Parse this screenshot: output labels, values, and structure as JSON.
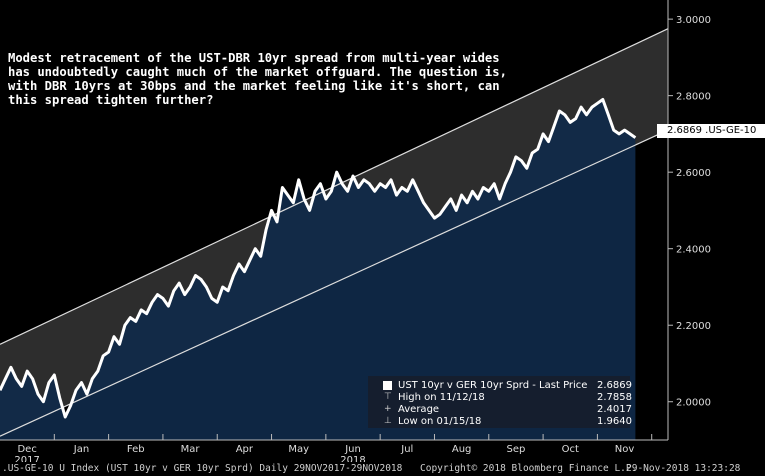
{
  "annotation": "Modest retracement of the UST-DBR 10yr spread from multi-year wides has undoubtedly caught much of the market offguard. The question is, with DBR 10yrs at 30bps and the market feeling like it's short, can this spread tighten further?",
  "last_price_label": "2.6869 .US-GE-10",
  "legend": {
    "title": "UST 10yr v GER 10yr Sprd - Last Price",
    "title_value": "2.6869",
    "rows": [
      {
        "label": "High on 11/12/18",
        "value": "2.7858"
      },
      {
        "label": "Average",
        "value": "2.4017"
      },
      {
        "label": "Low on 01/15/18",
        "value": "1.9640"
      }
    ]
  },
  "footer": {
    "left": ".US-GE-10 U Index (UST 10yr v GER 10yr Sprd)  Daily 29NOV2017-29NOV2018",
    "center": "Copyright© 2018 Bloomberg Finance L.P.",
    "right": "29-Nov-2018 13:23:28"
  },
  "colors": {
    "background": "#000000",
    "line": "#ffffff",
    "area_fill": "#0f2a4a",
    "channel_fill": "#3c3c3c",
    "channel_lines": "#dddddd"
  },
  "chart_data": {
    "type": "line",
    "title": "",
    "ylim": [
      1.9,
      3.05
    ],
    "yticks": [
      "2.0000",
      "2.2000",
      "2.4000",
      "2.6000",
      "2.8000",
      "3.0000"
    ],
    "ytick_values": [
      2.0,
      2.2,
      2.4,
      2.6,
      2.8,
      3.0
    ],
    "x_month_labels": [
      {
        "label": "Dec",
        "sub": "2017",
        "x": 0.5
      },
      {
        "label": "Jan",
        "sub": "",
        "x": 1.5
      },
      {
        "label": "Feb",
        "sub": "",
        "x": 2.5
      },
      {
        "label": "Mar",
        "sub": "",
        "x": 3.5
      },
      {
        "label": "Apr",
        "sub": "",
        "x": 4.5
      },
      {
        "label": "May",
        "sub": "",
        "x": 5.5
      },
      {
        "label": "Jun",
        "sub": "2018",
        "x": 6.5
      },
      {
        "label": "Jul",
        "sub": "",
        "x": 7.5
      },
      {
        "label": "Aug",
        "sub": "",
        "x": 8.5
      },
      {
        "label": "Sep",
        "sub": "",
        "x": 9.5
      },
      {
        "label": "Oct",
        "sub": "",
        "x": 10.5
      },
      {
        "label": "Nov",
        "sub": "",
        "x": 11.5
      }
    ],
    "xlim": [
      0,
      12.3
    ],
    "series": [
      {
        "name": "UST 10yr v GER 10yr Sprd",
        "x": [
          0.0,
          0.1,
          0.2,
          0.3,
          0.4,
          0.5,
          0.6,
          0.7,
          0.8,
          0.9,
          1.0,
          1.1,
          1.2,
          1.3,
          1.4,
          1.5,
          1.6,
          1.7,
          1.8,
          1.9,
          2.0,
          2.1,
          2.2,
          2.3,
          2.4,
          2.5,
          2.6,
          2.7,
          2.8,
          2.9,
          3.0,
          3.1,
          3.2,
          3.3,
          3.4,
          3.5,
          3.6,
          3.7,
          3.8,
          3.9,
          4.0,
          4.1,
          4.2,
          4.3,
          4.4,
          4.5,
          4.6,
          4.7,
          4.8,
          4.9,
          5.0,
          5.1,
          5.2,
          5.3,
          5.4,
          5.5,
          5.6,
          5.7,
          5.8,
          5.9,
          6.0,
          6.1,
          6.2,
          6.3,
          6.4,
          6.5,
          6.6,
          6.7,
          6.8,
          6.9,
          7.0,
          7.1,
          7.2,
          7.3,
          7.4,
          7.5,
          7.6,
          7.7,
          7.8,
          7.9,
          8.0,
          8.1,
          8.2,
          8.3,
          8.4,
          8.5,
          8.6,
          8.7,
          8.8,
          8.9,
          9.0,
          9.1,
          9.2,
          9.3,
          9.4,
          9.5,
          9.6,
          9.7,
          9.8,
          9.9,
          10.0,
          10.1,
          10.2,
          10.3,
          10.4,
          10.5,
          10.6,
          10.7,
          10.8,
          10.9,
          11.0,
          11.1,
          11.2,
          11.3,
          11.4,
          11.5,
          11.6,
          11.7
        ],
        "values": [
          2.03,
          2.06,
          2.09,
          2.06,
          2.04,
          2.08,
          2.06,
          2.02,
          2.0,
          2.05,
          2.07,
          2.01,
          1.96,
          1.99,
          2.03,
          2.05,
          2.02,
          2.06,
          2.08,
          2.12,
          2.13,
          2.17,
          2.15,
          2.2,
          2.22,
          2.21,
          2.24,
          2.23,
          2.26,
          2.28,
          2.27,
          2.25,
          2.29,
          2.31,
          2.28,
          2.3,
          2.33,
          2.32,
          2.3,
          2.27,
          2.26,
          2.3,
          2.29,
          2.33,
          2.36,
          2.34,
          2.37,
          2.4,
          2.38,
          2.45,
          2.5,
          2.47,
          2.56,
          2.54,
          2.52,
          2.58,
          2.53,
          2.5,
          2.55,
          2.57,
          2.53,
          2.55,
          2.6,
          2.57,
          2.55,
          2.59,
          2.56,
          2.58,
          2.57,
          2.55,
          2.57,
          2.56,
          2.58,
          2.54,
          2.56,
          2.55,
          2.58,
          2.55,
          2.52,
          2.5,
          2.48,
          2.49,
          2.51,
          2.53,
          2.5,
          2.54,
          2.52,
          2.55,
          2.53,
          2.56,
          2.55,
          2.57,
          2.53,
          2.57,
          2.6,
          2.64,
          2.63,
          2.61,
          2.65,
          2.66,
          2.7,
          2.68,
          2.72,
          2.76,
          2.75,
          2.73,
          2.74,
          2.77,
          2.75,
          2.77,
          2.78,
          2.79,
          2.75,
          2.71,
          2.7,
          2.71,
          2.7,
          2.69
        ]
      }
    ],
    "channel": {
      "upper": {
        "x": [
          0.0,
          12.3
        ],
        "y": [
          2.15,
          2.975
        ]
      },
      "lower": {
        "x": [
          0.0,
          12.3
        ],
        "y": [
          1.91,
          2.71
        ]
      }
    },
    "grid": false
  }
}
